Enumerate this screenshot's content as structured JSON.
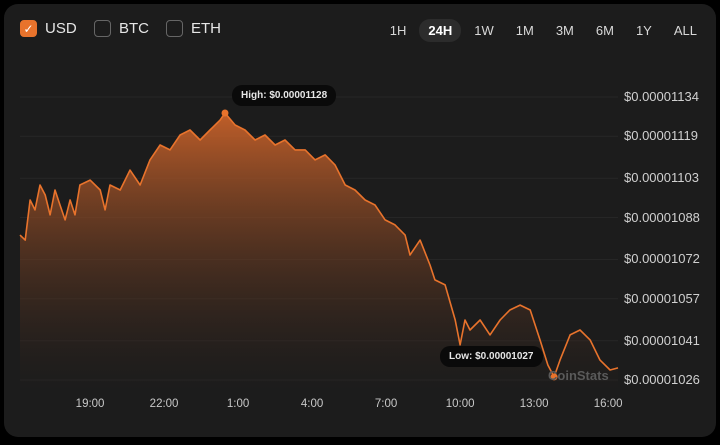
{
  "currencies": [
    {
      "label": "USD",
      "checked": true
    },
    {
      "label": "BTC",
      "checked": false
    },
    {
      "label": "ETH",
      "checked": false
    }
  ],
  "ranges": [
    {
      "label": "1H"
    },
    {
      "label": "24H",
      "active": true
    },
    {
      "label": "1W"
    },
    {
      "label": "1M"
    },
    {
      "label": "3M"
    },
    {
      "label": "6M"
    },
    {
      "label": "1Y"
    },
    {
      "label": "ALL"
    }
  ],
  "colors": {
    "accent": "#e8732c",
    "background": "#1c1c1c"
  },
  "watermark": "CoinStats",
  "chart_data": {
    "type": "area",
    "value_unit": "1e-8 USD",
    "ylim": [
      1026,
      1134
    ],
    "y_ticks": [
      1134,
      1119,
      1103,
      1088,
      1072,
      1057,
      1041,
      1026
    ],
    "y_tick_labels": [
      "$0.00001134",
      "$0.00001119",
      "$0.00001103",
      "$0.00001088",
      "$0.00001072",
      "$0.00001057",
      "$0.00001041",
      "$0.00001026"
    ],
    "x_unit": "hours since 19:00",
    "xlim": [
      -2.84,
      21.4
    ],
    "x_ticks": [
      0,
      3,
      6,
      9,
      12,
      15,
      18,
      21
    ],
    "x_tick_labels": [
      "19:00",
      "22:00",
      "1:00",
      "4:00",
      "7:00",
      "10:00",
      "13:00",
      "16:00"
    ],
    "high_label": "High: $0.00001128",
    "low_label": "Low: $0.00001027",
    "points": [
      [
        -2.84,
        1081.3
      ],
      [
        -2.63,
        1079.4
      ],
      [
        -2.43,
        1094.7
      ],
      [
        -2.23,
        1090.9
      ],
      [
        -2.03,
        1100.4
      ],
      [
        -1.82,
        1096.6
      ],
      [
        -1.62,
        1089.0
      ],
      [
        -1.42,
        1098.5
      ],
      [
        -1.22,
        1092.8
      ],
      [
        -1.01,
        1087.1
      ],
      [
        -0.81,
        1094.7
      ],
      [
        -0.61,
        1089.0
      ],
      [
        -0.41,
        1100.4
      ],
      [
        0,
        1102.3
      ],
      [
        0.41,
        1098.5
      ],
      [
        0.61,
        1090.9
      ],
      [
        0.81,
        1100.4
      ],
      [
        1.22,
        1098.5
      ],
      [
        1.62,
        1106.1
      ],
      [
        2.03,
        1100.4
      ],
      [
        2.43,
        1110.0
      ],
      [
        2.84,
        1115.7
      ],
      [
        3.24,
        1113.8
      ],
      [
        3.65,
        1119.5
      ],
      [
        4.05,
        1121.4
      ],
      [
        4.46,
        1117.6
      ],
      [
        4.86,
        1121.4
      ],
      [
        5.27,
        1125.2
      ],
      [
        5.47,
        1127.9
      ],
      [
        5.88,
        1123.3
      ],
      [
        6.28,
        1121.4
      ],
      [
        6.69,
        1117.6
      ],
      [
        7.09,
        1119.5
      ],
      [
        7.5,
        1115.7
      ],
      [
        7.9,
        1117.6
      ],
      [
        8.31,
        1113.8
      ],
      [
        8.72,
        1113.8
      ],
      [
        9.12,
        1110.0
      ],
      [
        9.53,
        1111.9
      ],
      [
        9.93,
        1108.1
      ],
      [
        10.34,
        1100.4
      ],
      [
        10.74,
        1098.5
      ],
      [
        11.15,
        1094.7
      ],
      [
        11.55,
        1092.8
      ],
      [
        11.96,
        1087.1
      ],
      [
        12.36,
        1085.2
      ],
      [
        12.77,
        1081.3
      ],
      [
        12.97,
        1073.7
      ],
      [
        13.38,
        1079.4
      ],
      [
        13.78,
        1069.9
      ],
      [
        13.98,
        1064.2
      ],
      [
        14.39,
        1062.3
      ],
      [
        14.8,
        1048.9
      ],
      [
        15.0,
        1039.4
      ],
      [
        15.2,
        1048.9
      ],
      [
        15.4,
        1045.1
      ],
      [
        15.81,
        1048.9
      ],
      [
        16.21,
        1043.2
      ],
      [
        16.62,
        1048.9
      ],
      [
        17.02,
        1052.7
      ],
      [
        17.43,
        1054.6
      ],
      [
        17.84,
        1052.7
      ],
      [
        18.24,
        1041.3
      ],
      [
        18.56,
        1031.7
      ],
      [
        18.81,
        1027.2
      ],
      [
        19.05,
        1033.6
      ],
      [
        19.46,
        1043.2
      ],
      [
        19.86,
        1045.1
      ],
      [
        20.27,
        1041.3
      ],
      [
        20.67,
        1033.6
      ],
      [
        21.08,
        1029.8
      ],
      [
        21.4,
        1030.6
      ]
    ]
  }
}
